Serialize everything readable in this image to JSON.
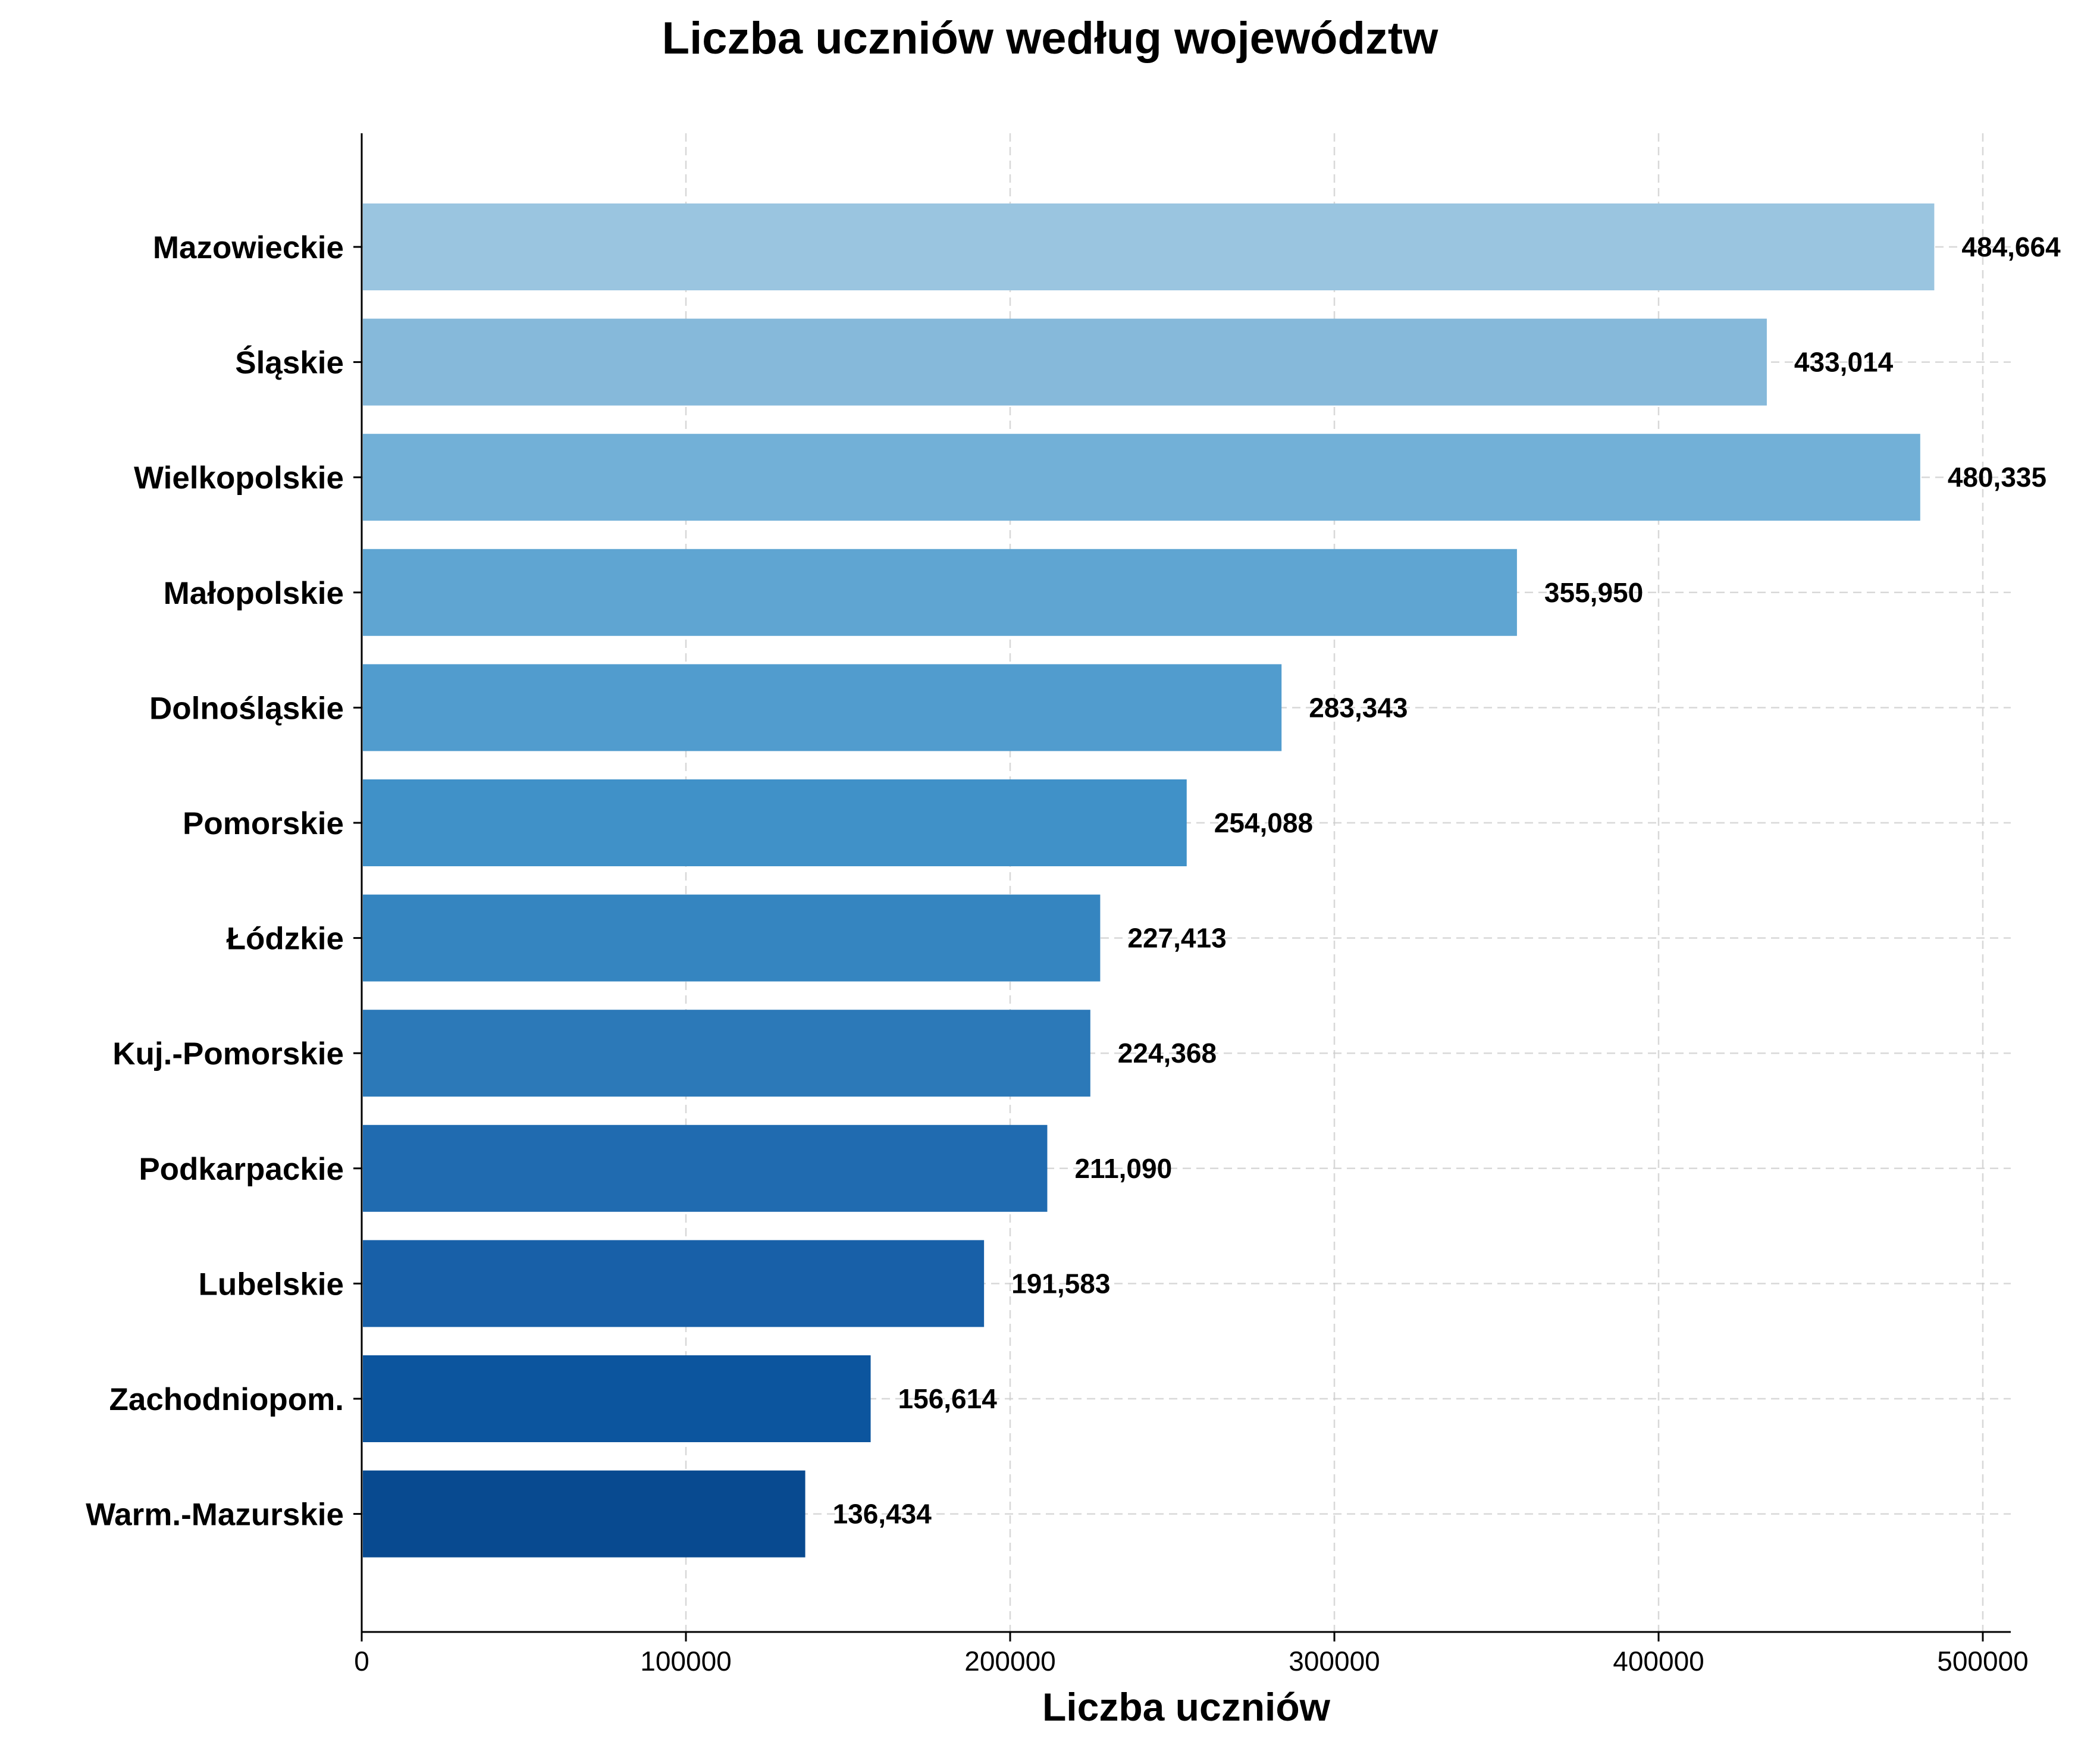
{
  "chart_data": {
    "type": "bar",
    "orientation": "horizontal",
    "title": "Liczba uczniów według województw",
    "xlabel": "Liczba uczniów",
    "ylabel": "",
    "xlim": [
      0,
      510000
    ],
    "xticks": [
      0,
      100000,
      200000,
      300000,
      400000,
      500000
    ],
    "xtick_labels": [
      "0",
      "100000",
      "200000",
      "300000",
      "400000",
      "500000"
    ],
    "grid": true,
    "categories": [
      "Mazowieckie",
      "Śląskie",
      "Wielkopolskie",
      "Małopolskie",
      "Dolnośląskie",
      "Pomorskie",
      "Łódzkie",
      "Kuj.-Pomorskie",
      "Podkarpackie",
      "Lubelskie",
      "Zachodniopom.",
      "Warm.-Mazurskie"
    ],
    "values": [
      484664,
      433014,
      480335,
      355950,
      283343,
      254088,
      227413,
      224368,
      211090,
      191583,
      156614,
      136434
    ],
    "value_labels": [
      "484,664",
      "433,014",
      "480,335",
      "355,950",
      "283,343",
      "254,088",
      "227,413",
      "224,368",
      "211,090",
      "191,583",
      "156,614",
      "136,434"
    ],
    "colors": [
      "#9ac5e0",
      "#86b9da",
      "#72b0d7",
      "#5fa5d2",
      "#519cce",
      "#4091c8",
      "#3585c0",
      "#2c79b8",
      "#206bb0",
      "#1860a8",
      "#0c559e",
      "#084a90"
    ]
  }
}
